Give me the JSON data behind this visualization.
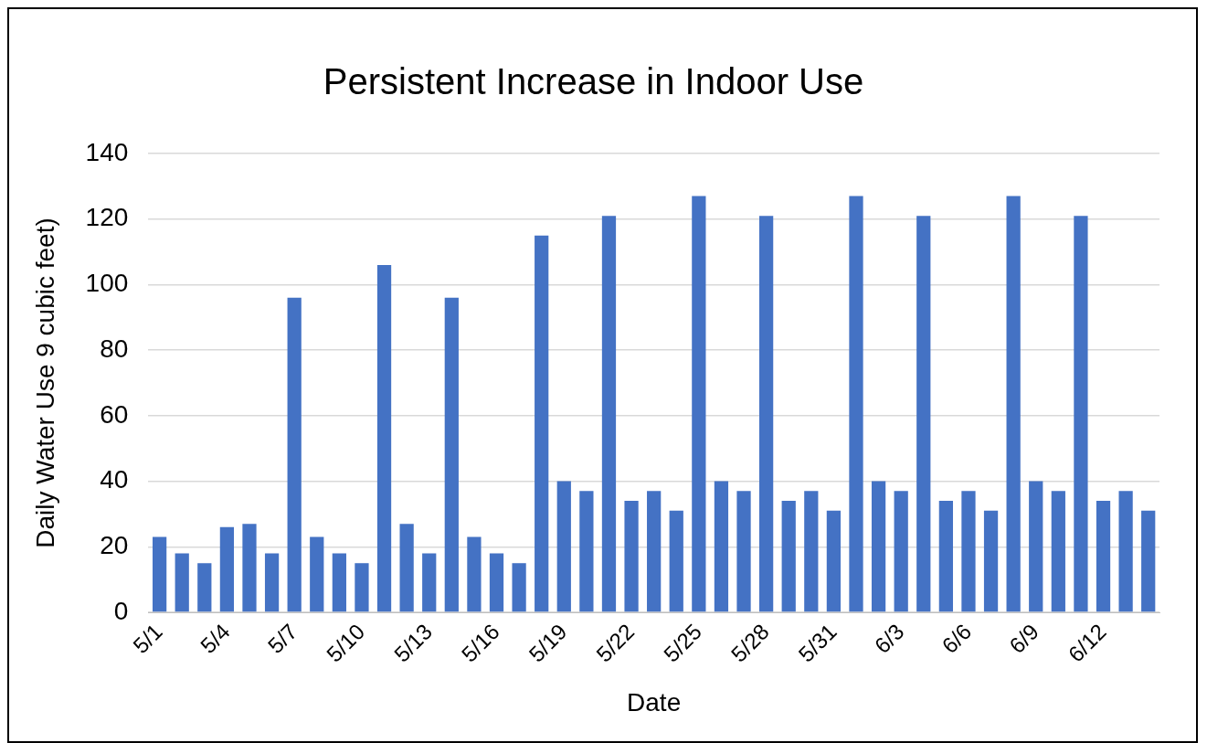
{
  "chart_data": {
    "type": "bar",
    "title": "Persistent Increase in Indoor Use",
    "xlabel": "Date",
    "ylabel": "Daily Water Use 9 cubic feet)",
    "categories": [
      "5/1",
      null,
      null,
      "5/4",
      null,
      null,
      "5/7",
      null,
      null,
      "5/10",
      null,
      null,
      "5/13",
      null,
      null,
      "5/16",
      null,
      null,
      "5/19",
      null,
      null,
      "5/22",
      null,
      null,
      "5/25",
      null,
      null,
      "5/28",
      null,
      null,
      "5/31",
      null,
      null,
      "6/3",
      null,
      null,
      "6/6",
      null,
      null,
      "6/9",
      null,
      null,
      "6/12",
      null,
      null
    ],
    "values": [
      23,
      18,
      15,
      26,
      27,
      18,
      96,
      23,
      18,
      15,
      106,
      27,
      18,
      96,
      23,
      18,
      15,
      115,
      40,
      37,
      121,
      34,
      37,
      31,
      127,
      40,
      37,
      121,
      34,
      37,
      31,
      127,
      40,
      37,
      121,
      34,
      37,
      31,
      127,
      40,
      37,
      121,
      34,
      37,
      31
    ],
    "color": "#4472c4",
    "ylim": [
      0,
      140
    ],
    "yticks": [
      0,
      20,
      40,
      60,
      80,
      100,
      120,
      140
    ],
    "grid": "y",
    "legend": false
  }
}
